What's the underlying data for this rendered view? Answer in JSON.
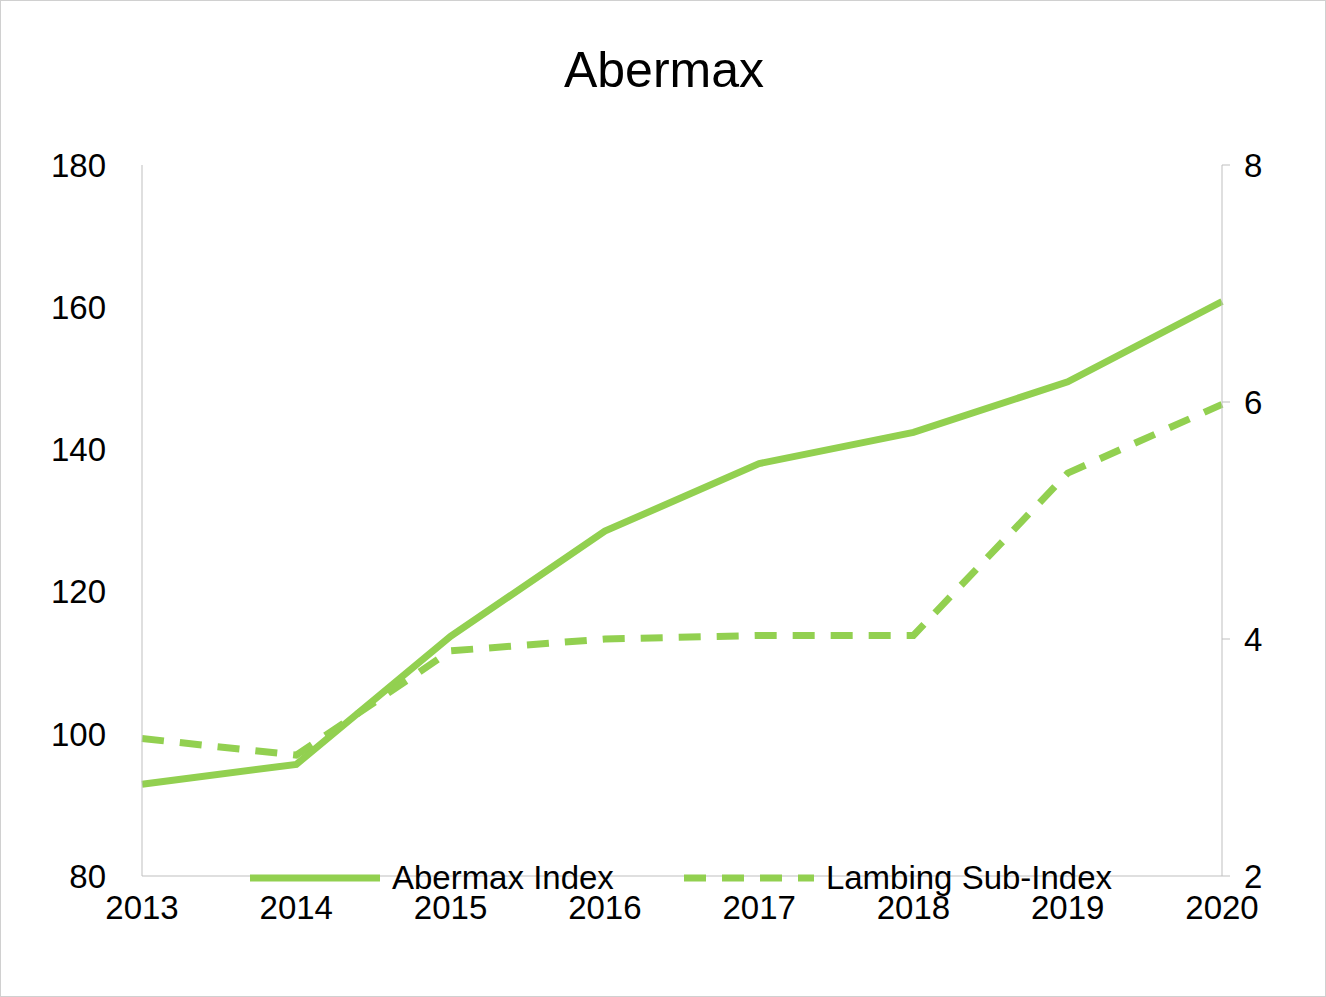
{
  "chart_data": {
    "type": "line",
    "title": "Abermax",
    "categories": [
      "2013",
      "2014",
      "2015",
      "2016",
      "2017",
      "2018",
      "2019",
      "2020"
    ],
    "series": [
      {
        "name": "Abermax Index",
        "color": "#92d050",
        "line_style": "solid",
        "values": [
          92.9,
          95.7,
          113.7,
          128.5,
          138.0,
          142.4,
          149.5,
          160.8
        ]
      },
      {
        "name": "Lambing Sub-Index",
        "color": "#92d050",
        "line_style": "dashed",
        "axis": "y2",
        "values": [
          3.16,
          3.02,
          3.9,
          4.0,
          4.03,
          4.03,
          5.4,
          5.98
        ]
      }
    ],
    "ylim": [
      80,
      180
    ],
    "yticks": [
      80,
      100,
      120,
      140,
      160,
      180
    ],
    "y2lim": [
      2,
      8
    ],
    "y2ticks": [
      2,
      4,
      6,
      8
    ],
    "grid": false,
    "legend": "bottom"
  }
}
